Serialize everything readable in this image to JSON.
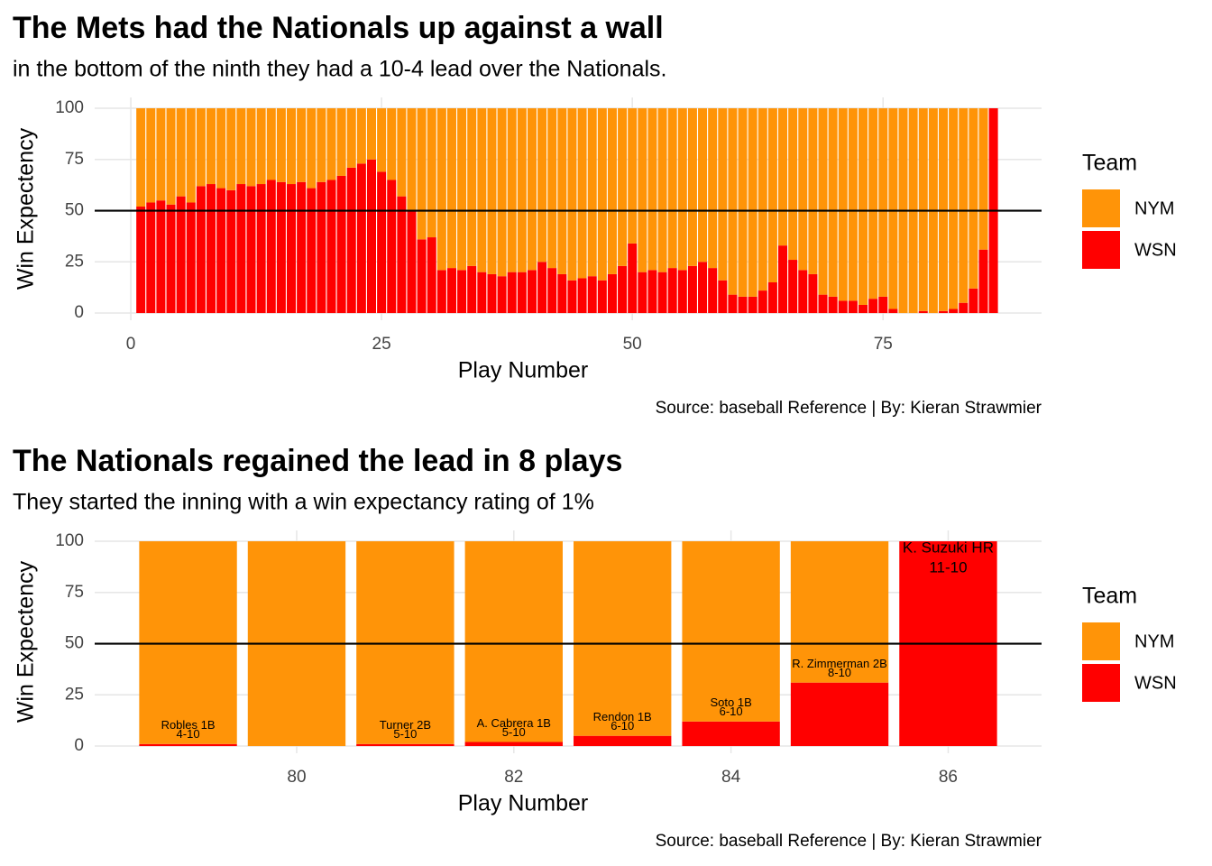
{
  "chart_data": [
    {
      "type": "bar",
      "stacked": true,
      "title": "The Mets had the Nationals up against a wall",
      "subtitle": "in the bottom of the ninth they had a 10-4 lead over the Nationals.",
      "x_label": "Play Number",
      "y_label": "Win Expectency",
      "caption": "Source: baseball Reference | By: Kieran Strawmier",
      "legend_title": "Team",
      "x": [
        1,
        2,
        3,
        4,
        5,
        6,
        7,
        8,
        9,
        10,
        11,
        12,
        13,
        14,
        15,
        16,
        17,
        18,
        19,
        20,
        21,
        22,
        23,
        24,
        25,
        26,
        27,
        28,
        29,
        30,
        31,
        32,
        33,
        34,
        35,
        36,
        37,
        38,
        39,
        40,
        41,
        42,
        43,
        44,
        45,
        46,
        47,
        48,
        49,
        50,
        51,
        52,
        53,
        54,
        55,
        56,
        57,
        58,
        59,
        60,
        61,
        62,
        63,
        64,
        65,
        66,
        67,
        68,
        69,
        70,
        71,
        72,
        73,
        74,
        75,
        76,
        77,
        78,
        79,
        80,
        81,
        82,
        83,
        84,
        85,
        86
      ],
      "series": [
        {
          "name": "NYM",
          "color": "#ff9408",
          "values": [
            48,
            46,
            45,
            47,
            43,
            46,
            38,
            37,
            39,
            40,
            37,
            38,
            37,
            35,
            36,
            37,
            36,
            39,
            36,
            35,
            33,
            29,
            27,
            25,
            31,
            35,
            43,
            50,
            64,
            63,
            79,
            78,
            79,
            77,
            80,
            81,
            82,
            80,
            80,
            79,
            75,
            78,
            81,
            84,
            83,
            82,
            84,
            81,
            77,
            66,
            80,
            79,
            80,
            78,
            79,
            77,
            75,
            78,
            84,
            91,
            92,
            92,
            89,
            85,
            67,
            74,
            79,
            81,
            91,
            92,
            94,
            94,
            96,
            93,
            92,
            98,
            100,
            100,
            99,
            100,
            99,
            98,
            95,
            88,
            69,
            0
          ]
        },
        {
          "name": "WSN",
          "color": "#ff0000",
          "values": [
            52,
            54,
            55,
            53,
            57,
            54,
            62,
            63,
            61,
            60,
            63,
            62,
            63,
            65,
            64,
            63,
            64,
            61,
            64,
            65,
            67,
            71,
            73,
            75,
            69,
            65,
            57,
            50,
            36,
            37,
            21,
            22,
            21,
            23,
            20,
            19,
            18,
            20,
            20,
            21,
            25,
            22,
            19,
            16,
            17,
            18,
            16,
            19,
            23,
            34,
            20,
            21,
            20,
            22,
            21,
            23,
            25,
            22,
            16,
            9,
            8,
            8,
            11,
            15,
            33,
            26,
            21,
            19,
            9,
            8,
            6,
            6,
            4,
            7,
            8,
            2,
            0,
            0,
            1,
            0,
            1,
            2,
            5,
            12,
            31,
            100
          ]
        }
      ],
      "hline": 50,
      "xlim": [
        -3.6,
        90.8
      ],
      "xticks": [
        0,
        25,
        50,
        75
      ],
      "ylim": [
        -3.5,
        105.3
      ],
      "yticks": [
        0,
        25,
        50,
        75,
        100
      ],
      "grid": true
    },
    {
      "type": "bar",
      "stacked": true,
      "title": "The Nationals regained the lead in 8 plays",
      "subtitle": "They started the inning with a win expectancy rating of 1%",
      "x_label": "Play Number",
      "y_label": "Win Expectency",
      "caption": "Source: baseball Reference | By: Kieran Strawmier",
      "legend_title": "Team",
      "x": [
        79,
        80,
        81,
        82,
        83,
        84,
        85,
        86
      ],
      "series": [
        {
          "name": "NYM",
          "color": "#ff9408",
          "values": [
            99,
            100,
            99,
            98,
            95,
            88,
            69,
            0
          ]
        },
        {
          "name": "WSN",
          "color": "#ff0000",
          "values": [
            1,
            0,
            1,
            2,
            5,
            12,
            31,
            100
          ]
        }
      ],
      "play_labels": [
        "Robles 1B",
        null,
        "Turner 2B",
        "A. Cabrera 1B",
        "Rendon 1B",
        "Soto 1B",
        "R. Zimmerman 2B",
        "K. Suzuki HR"
      ],
      "score_labels": [
        "4-10",
        null,
        "5-10",
        "5-10",
        "6-10",
        "6-10",
        "8-10",
        "11-10"
      ],
      "hline": 50,
      "xlim": [
        78.14,
        86.86
      ],
      "xticks": [
        80,
        82,
        84,
        86
      ],
      "ylim": [
        -3.5,
        105.3
      ],
      "yticks": [
        0,
        25,
        50,
        75,
        100
      ],
      "grid": true
    }
  ]
}
